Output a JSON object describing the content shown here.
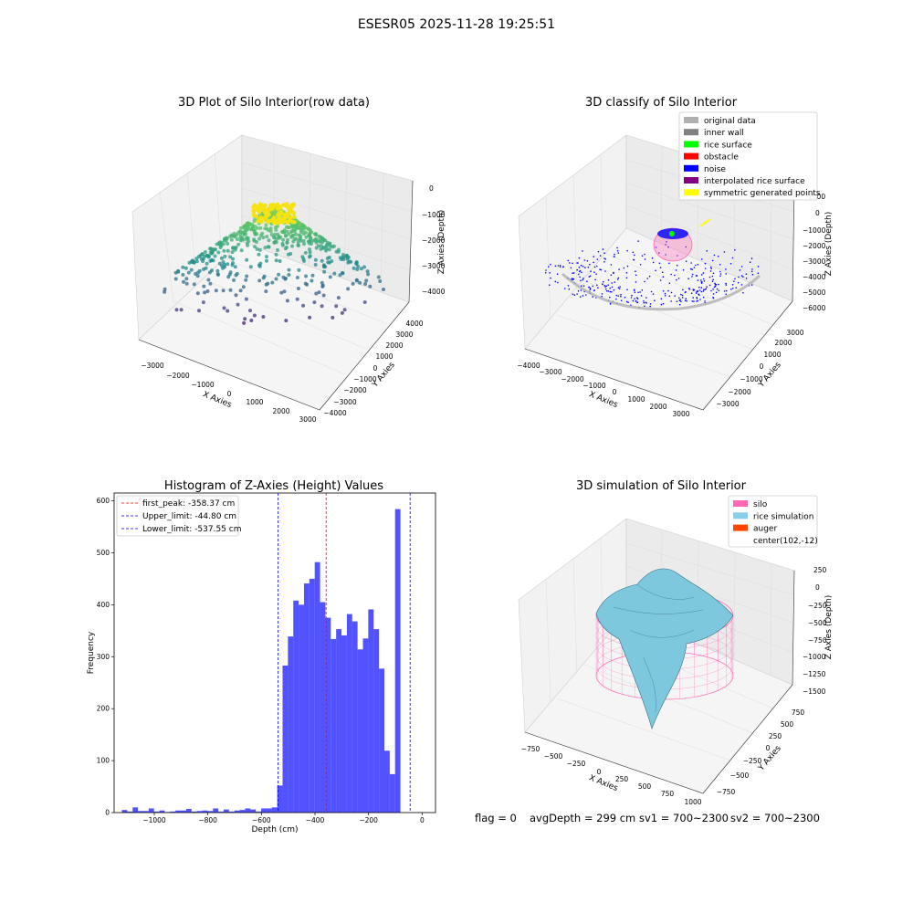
{
  "figure": {
    "title": "ESESR05 2025-11-28 19:25:51",
    "status": {
      "flag": "flag = 0",
      "avg_depth": "avgDepth = 299 cm",
      "sv1": "sv1 = 700~2300",
      "sv2": "sv2 = 700~2300"
    }
  },
  "panels": {
    "raw": {
      "title": "3D Plot of Silo Interior(row data)",
      "xlabel": "X Axies",
      "ylabel": "Y Axies",
      "zlabel": "Z Axies (Depth)",
      "xticks": [
        "−3000",
        "−2000",
        "−1000",
        "0",
        "1000",
        "2000",
        "3000"
      ],
      "yticks": [
        "−4000",
        "−3000",
        "−2000",
        "−1000",
        "0",
        "1000",
        "2000",
        "3000",
        "4000"
      ],
      "zticks": [
        "0",
        "−1000",
        "−2000",
        "−3000",
        "−4000"
      ]
    },
    "classify": {
      "title": "3D classify of Silo Interior",
      "xlabel": "X Axies",
      "ylabel": "Y Axies",
      "zlabel": "Z Axies (Depth)",
      "xticks": [
        "−4000",
        "−3000",
        "−2000",
        "−1000",
        "0",
        "1000",
        "2000",
        "3000"
      ],
      "yticks": [
        "−3000",
        "−2000",
        "−1000",
        "0",
        "1000",
        "2000",
        "3000"
      ],
      "zticks": [
        "1000",
        "0",
        "−1000",
        "−2000",
        "−3000",
        "−4000",
        "−5000",
        "−6000"
      ],
      "legend": [
        {
          "label": "original data",
          "color": "#b0b0b0"
        },
        {
          "label": "inner wall",
          "color": "#808080"
        },
        {
          "label": "rice surface",
          "color": "#00ff00"
        },
        {
          "label": "obstacle",
          "color": "#ff0000"
        },
        {
          "label": "noise",
          "color": "#0000ff"
        },
        {
          "label": "interpolated rice surface",
          "color": "#800080"
        },
        {
          "label": "symmetric generated points",
          "color": "#ffff00"
        }
      ]
    },
    "simulation": {
      "title": "3D simulation of Silo Interior",
      "xlabel": "X Axies",
      "ylabel": "Y Axies",
      "zlabel": "Z Axies (Depth)",
      "xticks": [
        "−750",
        "−500",
        "−250",
        "0",
        "250",
        "500",
        "750",
        "1000"
      ],
      "yticks": [
        "−750",
        "−500",
        "−250",
        "0",
        "250",
        "500",
        "750"
      ],
      "zticks": [
        "250",
        "0",
        "−250",
        "−500",
        "−750",
        "−1000",
        "−1250",
        "−1500"
      ],
      "legend": [
        {
          "label": "silo",
          "color": "#ff69b4"
        },
        {
          "label": "rice simulation",
          "color": "#87ceeb"
        },
        {
          "label": "auger",
          "color": "#ff4500"
        },
        {
          "label": "center(102,-12)",
          "color": ""
        }
      ]
    }
  },
  "chart_data": {
    "type": "bar",
    "title": "Histogram of Z-Axies (Height) Values",
    "xlabel": "Depth (cm)",
    "ylabel": "Frequency",
    "xlim": [
      -1150,
      50
    ],
    "ylim": [
      0,
      615
    ],
    "xticks": [
      -1000,
      -800,
      -600,
      -400,
      -200,
      0
    ],
    "xtick_labels": [
      "−1000",
      "−800",
      "−600",
      "−400",
      "−200",
      "0"
    ],
    "yticks": [
      0,
      100,
      200,
      300,
      400,
      500,
      600
    ],
    "bar_color": "#0000ff",
    "bins": [
      {
        "x0": -1121,
        "x1": -1101,
        "count": 5
      },
      {
        "x0": -1101,
        "x1": -1081,
        "count": 2
      },
      {
        "x0": -1081,
        "x1": -1061,
        "count": 10
      },
      {
        "x0": -1061,
        "x1": -1041,
        "count": 3
      },
      {
        "x0": -1041,
        "x1": -1021,
        "count": 3
      },
      {
        "x0": -1021,
        "x1": -1001,
        "count": 8
      },
      {
        "x0": -1001,
        "x1": -981,
        "count": 2
      },
      {
        "x0": -981,
        "x1": -961,
        "count": 4
      },
      {
        "x0": -961,
        "x1": -941,
        "count": 1
      },
      {
        "x0": -941,
        "x1": -921,
        "count": 2
      },
      {
        "x0": -921,
        "x1": -901,
        "count": 4
      },
      {
        "x0": -901,
        "x1": -881,
        "count": 4
      },
      {
        "x0": -881,
        "x1": -861,
        "count": 7
      },
      {
        "x0": -861,
        "x1": -841,
        "count": 2
      },
      {
        "x0": -841,
        "x1": -821,
        "count": 3
      },
      {
        "x0": -821,
        "x1": -801,
        "count": 4
      },
      {
        "x0": -801,
        "x1": -781,
        "count": 3
      },
      {
        "x0": -781,
        "x1": -761,
        "count": 8
      },
      {
        "x0": -761,
        "x1": -741,
        "count": 2
      },
      {
        "x0": -741,
        "x1": -721,
        "count": 6
      },
      {
        "x0": -721,
        "x1": -701,
        "count": 2
      },
      {
        "x0": -701,
        "x1": -681,
        "count": 4
      },
      {
        "x0": -681,
        "x1": -661,
        "count": 5
      },
      {
        "x0": -661,
        "x1": -641,
        "count": 8
      },
      {
        "x0": -641,
        "x1": -621,
        "count": 6
      },
      {
        "x0": -621,
        "x1": -601,
        "count": 2
      },
      {
        "x0": -601,
        "x1": -581,
        "count": 8
      },
      {
        "x0": -581,
        "x1": -561,
        "count": 8
      },
      {
        "x0": -561,
        "x1": -541,
        "count": 10
      },
      {
        "x0": -541,
        "x1": -521,
        "count": 52
      },
      {
        "x0": -521,
        "x1": -501,
        "count": 283
      },
      {
        "x0": -501,
        "x1": -481,
        "count": 339
      },
      {
        "x0": -481,
        "x1": -461,
        "count": 408
      },
      {
        "x0": -461,
        "x1": -441,
        "count": 400
      },
      {
        "x0": -441,
        "x1": -421,
        "count": 441
      },
      {
        "x0": -421,
        "x1": -401,
        "count": 450
      },
      {
        "x0": -401,
        "x1": -381,
        "count": 482
      },
      {
        "x0": -381,
        "x1": -361,
        "count": 405
      },
      {
        "x0": -361,
        "x1": -341,
        "count": 375
      },
      {
        "x0": -341,
        "x1": -321,
        "count": 334
      },
      {
        "x0": -321,
        "x1": -301,
        "count": 353
      },
      {
        "x0": -301,
        "x1": -281,
        "count": 341
      },
      {
        "x0": -281,
        "x1": -261,
        "count": 382
      },
      {
        "x0": -261,
        "x1": -241,
        "count": 368
      },
      {
        "x0": -241,
        "x1": -221,
        "count": 314
      },
      {
        "x0": -221,
        "x1": -201,
        "count": 335
      },
      {
        "x0": -201,
        "x1": -181,
        "count": 391
      },
      {
        "x0": -181,
        "x1": -161,
        "count": 353
      },
      {
        "x0": -161,
        "x1": -141,
        "count": 277
      },
      {
        "x0": -141,
        "x1": -121,
        "count": 119
      },
      {
        "x0": -121,
        "x1": -101,
        "count": 74
      },
      {
        "x0": -101,
        "x1": -81,
        "count": 584
      }
    ],
    "vlines": [
      {
        "label": "first_peak: -358.37 cm",
        "x": -358.37,
        "color": "#ff0000"
      },
      {
        "label": "Upper_limit: -44.80 cm",
        "x": -44.8,
        "color": "#0000ff"
      },
      {
        "label": "Lower_limit: -537.55 cm",
        "x": -537.55,
        "color": "#0000ff"
      }
    ],
    "legend_position": "top-left"
  }
}
